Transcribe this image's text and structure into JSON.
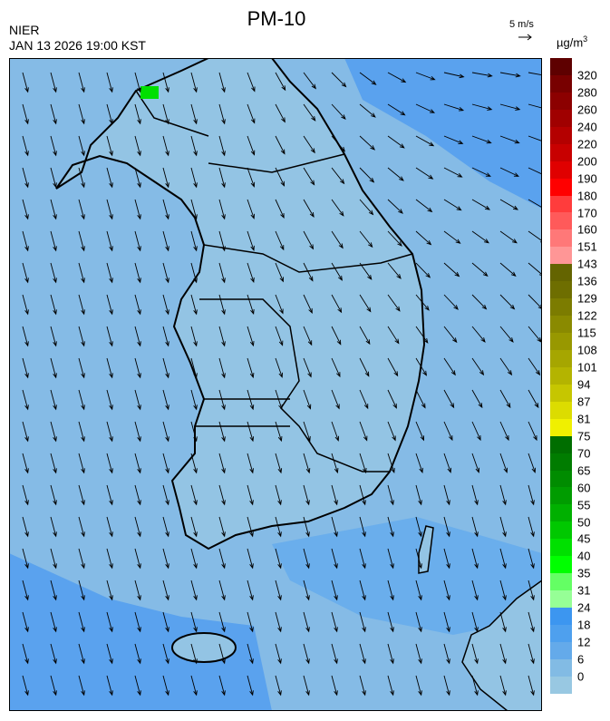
{
  "title": "PM-10",
  "organization": "NIER",
  "timestamp": "JAN 13 2026 19:00 KST",
  "wind_reference": {
    "label": "5 m/s",
    "icon": "arrow-right-icon"
  },
  "colorbar": {
    "unit": "µg/m",
    "unit_superscript": "3",
    "labels": [
      "320",
      "280",
      "260",
      "240",
      "220",
      "200",
      "190",
      "180",
      "170",
      "160",
      "151",
      "143",
      "136",
      "129",
      "122",
      "115",
      "108",
      "101",
      "94",
      "87",
      "81",
      "75",
      "70",
      "65",
      "60",
      "55",
      "50",
      "45",
      "40",
      "35",
      "31",
      "24",
      "18",
      "12",
      "6",
      "0"
    ],
    "colors": [
      "#5e0000",
      "#780000",
      "#8c0000",
      "#a00000",
      "#b40000",
      "#c80000",
      "#e00000",
      "#ff0000",
      "#ff3c3c",
      "#ff5a5a",
      "#ff7878",
      "#ff9696",
      "#646400",
      "#6e6e00",
      "#7c7c00",
      "#8a8a00",
      "#989800",
      "#a6a600",
      "#b4b400",
      "#c6c600",
      "#dcdc00",
      "#f0f000",
      "#006e00",
      "#007c00",
      "#008c00",
      "#009c00",
      "#00b000",
      "#00c800",
      "#00e000",
      "#00ff00",
      "#64ff64",
      "#96ff96",
      "#3c96f0",
      "#4ea0ee",
      "#64aaea",
      "#82bbe4",
      "#98c8e2"
    ]
  },
  "map": {
    "dominant_class": "6-12",
    "sea_color": "#85bbe6",
    "land_color": "#93c4e4",
    "hotspot_color": "#00e000"
  }
}
